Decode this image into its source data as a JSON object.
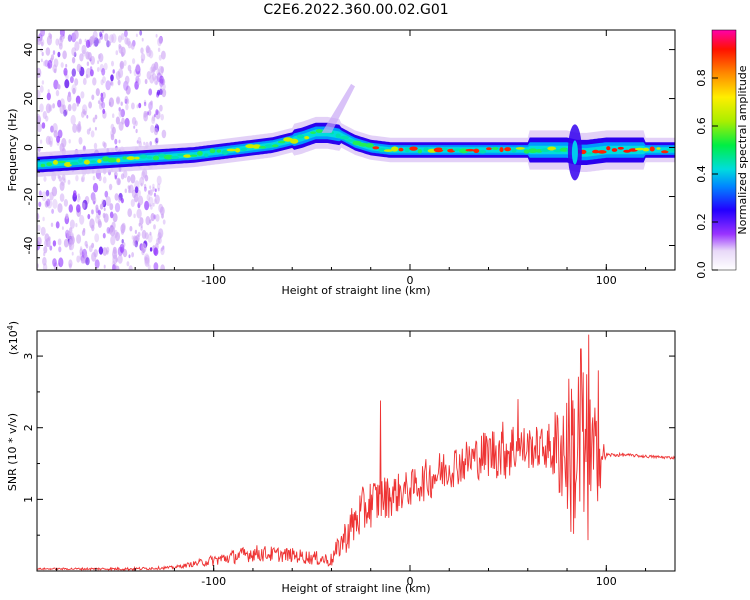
{
  "title": "C2E6.2022.360.00.02.G01",
  "colors": {
    "snr_line": "#ee3333",
    "axis": "#000000",
    "background": "#ffffff"
  },
  "chart_data": [
    {
      "type": "heatmap",
      "name": "spectrogram",
      "xlabel": "Height of straight line (km)",
      "ylabel": "Frequency (Hz)",
      "xlim": [
        -190,
        135
      ],
      "ylim": [
        -50,
        48
      ],
      "xticks": [
        -100,
        0,
        100
      ],
      "xtick_labels": [
        "-100",
        "0",
        "100"
      ],
      "yticks": [
        -40,
        -20,
        0,
        20,
        40
      ],
      "ytick_labels": [
        "-40",
        "-20",
        "0",
        "20",
        "40"
      ],
      "trace_x": [
        -190,
        -170,
        -150,
        -130,
        -110,
        -90,
        -70,
        -55,
        -48,
        -42,
        -35,
        -28,
        -20,
        -10,
        0,
        10,
        30,
        50,
        70,
        80,
        85,
        90,
        100,
        110,
        120,
        135
      ],
      "trace_freq": [
        -7,
        -6,
        -5,
        -4,
        -3,
        -1,
        1,
        4,
        6,
        6,
        5,
        2,
        0,
        -1,
        -1,
        -1,
        -1,
        -1,
        -1,
        -1,
        -2,
        -2,
        -1,
        -1,
        -1,
        -1
      ],
      "noise_region": [
        -190,
        -125
      ],
      "colorbar": {
        "label": "Normalized spectral amplitude",
        "range": [
          0.0,
          1.0
        ],
        "ticks": [
          0.0,
          0.2,
          0.4,
          0.6,
          0.8
        ],
        "tick_labels": [
          "0.0",
          "0.2",
          "0.4",
          "0.6",
          "0.8"
        ]
      }
    },
    {
      "type": "line",
      "name": "snr",
      "xlabel": "Height of straight line (km)",
      "ylabel": "SNR (10 * v/v)",
      "multiplier_label": "(x10",
      "multiplier_exp": "4",
      "multiplier_close": ")",
      "xlim": [
        -190,
        135
      ],
      "ylim": [
        0,
        3.35
      ],
      "xticks": [
        -100,
        0,
        100
      ],
      "xtick_labels": [
        "-100",
        "0",
        "100"
      ],
      "yticks": [
        1,
        2,
        3
      ],
      "ytick_labels": [
        "1",
        "2",
        "3"
      ],
      "envelope_x": [
        -190,
        -140,
        -120,
        -110,
        -100,
        -80,
        -60,
        -40,
        -35,
        -30,
        -25,
        -20,
        -10,
        0,
        10,
        20,
        30,
        40,
        50,
        60,
        70,
        80,
        85,
        90,
        95,
        100,
        110,
        120,
        135
      ],
      "envelope_mean": [
        0.03,
        0.03,
        0.05,
        0.1,
        0.15,
        0.25,
        0.22,
        0.15,
        0.4,
        0.6,
        0.8,
        0.95,
        1.05,
        1.15,
        1.3,
        1.45,
        1.55,
        1.65,
        1.7,
        1.72,
        1.72,
        1.7,
        1.6,
        1.5,
        1.55,
        1.62,
        1.62,
        1.6,
        1.58
      ],
      "envelope_noise": [
        0.01,
        0.02,
        0.02,
        0.04,
        0.08,
        0.12,
        0.1,
        0.1,
        0.2,
        0.3,
        0.35,
        0.35,
        0.3,
        0.25,
        0.3,
        0.3,
        0.3,
        0.35,
        0.45,
        0.3,
        0.3,
        1.0,
        1.5,
        1.3,
        0.7,
        0.03,
        0.02,
        0.02,
        0.02
      ],
      "spikes": [
        [
          -15,
          2.38
        ],
        [
          55,
          2.4
        ],
        [
          87,
          3.1
        ],
        [
          91,
          3.3
        ],
        [
          96,
          2.8
        ]
      ]
    }
  ]
}
